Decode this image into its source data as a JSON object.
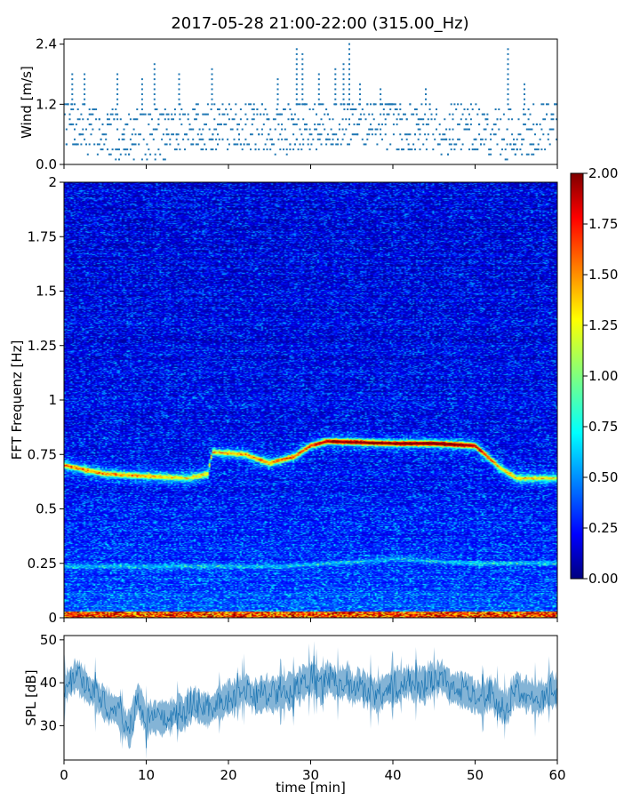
{
  "chart_data": {
    "title": "2017-05-28 21:00-22:00 (315.00_Hz)",
    "panels": [
      {
        "type": "scatter",
        "ylabel": "Wind [m/s]",
        "ylim": [
          0,
          2.5
        ],
        "yticks": [
          "0.0",
          "1.2",
          "2.4"
        ],
        "marker_color": "#1f77b4",
        "wind_levels_mps": [
          0.1,
          0.2,
          0.3,
          0.4,
          0.5,
          0.6,
          0.7,
          0.8,
          0.9,
          1.0,
          1.1,
          1.2
        ],
        "x_samples_min": [
          0,
          5,
          10,
          15,
          20,
          25,
          30,
          35,
          40,
          45,
          50,
          55,
          60
        ],
        "typical_wind_mps": [
          0.9,
          0.6,
          0.6,
          0.7,
          0.8,
          0.7,
          0.8,
          0.9,
          0.8,
          0.7,
          0.7,
          0.6,
          0.8
        ],
        "gust_peaks_mps": [
          {
            "t": 1,
            "v": 1.8
          },
          {
            "t": 2.5,
            "v": 1.8
          },
          {
            "t": 6.5,
            "v": 1.8
          },
          {
            "t": 9.5,
            "v": 1.7
          },
          {
            "t": 11,
            "v": 2.0
          },
          {
            "t": 14,
            "v": 1.8
          },
          {
            "t": 18,
            "v": 1.9
          },
          {
            "t": 26,
            "v": 1.7
          },
          {
            "t": 28.3,
            "v": 2.3
          },
          {
            "t": 29,
            "v": 2.2
          },
          {
            "t": 31,
            "v": 1.8
          },
          {
            "t": 33,
            "v": 1.9
          },
          {
            "t": 34,
            "v": 2.0
          },
          {
            "t": 34.7,
            "v": 2.4
          },
          {
            "t": 36,
            "v": 1.6
          },
          {
            "t": 38.5,
            "v": 1.5
          },
          {
            "t": 44,
            "v": 1.5
          },
          {
            "t": 54,
            "v": 2.3
          },
          {
            "t": 56,
            "v": 1.6
          }
        ]
      },
      {
        "type": "heatmap",
        "ylabel": "FFT Frequenz [Hz]",
        "ylim": [
          0,
          2
        ],
        "yticks": [
          "0",
          "0.25",
          "0.5",
          "0.75",
          "1",
          "1.25",
          "1.5",
          "1.75",
          "2"
        ],
        "colorscale": "jet",
        "colorbar": {
          "range": [
            0,
            2
          ],
          "ticks": [
            "0.00",
            "0.25",
            "0.50",
            "0.75",
            "1.00",
            "1.25",
            "1.50",
            "1.75",
            "2.00"
          ]
        },
        "dominant_frequency_hz": [
          [
            0,
            0.7
          ],
          [
            5,
            0.66
          ],
          [
            10,
            0.65
          ],
          [
            15,
            0.64
          ],
          [
            17.5,
            0.66
          ],
          [
            18,
            0.76
          ],
          [
            22,
            0.75
          ],
          [
            25,
            0.71
          ],
          [
            28,
            0.74
          ],
          [
            30,
            0.79
          ],
          [
            32,
            0.81
          ],
          [
            40,
            0.8
          ],
          [
            45,
            0.8
          ],
          [
            50,
            0.79
          ],
          [
            53,
            0.69
          ],
          [
            55,
            0.64
          ],
          [
            60,
            0.64
          ]
        ],
        "dominant_intensity": [
          [
            0,
            1.0
          ],
          [
            5,
            0.9
          ],
          [
            10,
            0.9
          ],
          [
            15,
            0.7
          ],
          [
            20,
            0.9
          ],
          [
            25,
            1.0
          ],
          [
            30,
            1.2
          ],
          [
            33,
            1.6
          ],
          [
            40,
            1.6
          ],
          [
            45,
            1.8
          ],
          [
            50,
            1.5
          ],
          [
            53,
            0.9
          ],
          [
            60,
            0.7
          ]
        ],
        "secondary_frequency_hz": [
          [
            27,
            0.235
          ],
          [
            40,
            0.27
          ],
          [
            50,
            0.25
          ]
        ]
      },
      {
        "type": "area",
        "ylabel": "SPL [dB]",
        "ylim": [
          22,
          51
        ],
        "yticks": [
          "30",
          "40",
          "50"
        ],
        "color": "#1f77b4",
        "x_min": [
          0,
          2,
          4,
          6,
          8,
          9,
          10,
          12,
          14,
          16,
          18,
          20,
          22,
          24,
          26,
          28,
          30,
          32,
          34,
          36,
          38,
          40,
          42,
          44,
          46,
          48,
          50,
          52,
          54,
          55,
          56,
          58,
          60
        ],
        "spl_db": [
          39,
          40,
          37,
          34,
          31,
          38,
          31,
          33,
          33,
          35,
          34,
          38,
          37,
          37,
          36,
          38,
          40,
          40,
          40,
          39,
          37,
          40,
          40,
          40,
          42,
          39,
          37,
          36,
          33,
          37,
          37,
          35,
          37
        ]
      }
    ],
    "xlabel": "time [min]",
    "xlim": [
      0,
      60
    ],
    "xticks": [
      "0",
      "10",
      "20",
      "30",
      "40",
      "50",
      "60"
    ]
  }
}
